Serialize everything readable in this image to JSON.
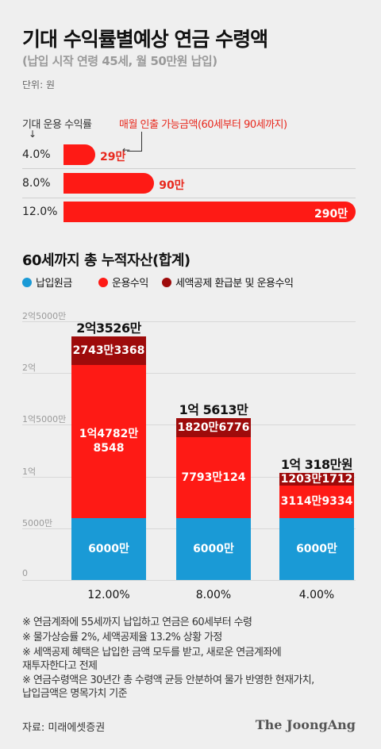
{
  "header": {
    "title": "기대 수익률별예상 연금 수령액",
    "subtitle": "(납입 시작 연령 45세, 월 50만원 납입)",
    "unit": "단위: 원"
  },
  "monthly": {
    "rate_label": "기대 운용 수익률",
    "note": "매월 인출 가능금액(60세부터 90세까지)",
    "rows": [
      {
        "rate": "4.0%",
        "value": 29,
        "label": "29만"
      },
      {
        "rate": "8.0%",
        "value": 90,
        "label": "90만"
      },
      {
        "rate": "12.0%",
        "value": 290,
        "label": "290만"
      }
    ]
  },
  "chart_data": {
    "type": "bar",
    "stacked": true,
    "title": "60세까지 총 누적자산(합계)",
    "categories": [
      "12.00%",
      "8.00%",
      "4.00%"
    ],
    "ylim": [
      0,
      250000000
    ],
    "yticks": [
      {
        "value": 0,
        "label": "0"
      },
      {
        "value": 50000000,
        "label": "5000만"
      },
      {
        "value": 100000000,
        "label": "1억"
      },
      {
        "value": 150000000,
        "label": "1억5000만"
      },
      {
        "value": 200000000,
        "label": "2억"
      },
      {
        "value": 250000000,
        "label": "2억5000만"
      }
    ],
    "series": [
      {
        "name": "납입원금",
        "color": "#1a9ad6",
        "values": [
          60000000,
          60000000,
          60000000
        ],
        "labels": [
          "6000만",
          "6000만",
          "6000만"
        ]
      },
      {
        "name": "운용수익",
        "color": "#fe1a15",
        "values": [
          147828548,
          77930124,
          31149334
        ],
        "labels": [
          "1억4782만\n8548",
          "7793만124",
          "3114만9334"
        ]
      },
      {
        "name": "세액공제 환급분 및 운용수익",
        "color": "#9e0b0b",
        "values": [
          27433368,
          18206776,
          12031712
        ],
        "labels": [
          "2743만3368",
          "1820만6776",
          "1203만1712"
        ]
      }
    ],
    "totals": [
      "2억3526만",
      "1억 5613만",
      "1억 318만원"
    ]
  },
  "footnotes": [
    "※ 연금계좌에 55세까지 납입하고 연금은 60세부터 수령",
    "※ 물가상승률 2%, 세액공제율 13.2% 상황 가정",
    "※ 세액공제 혜택은 납입한 금액 모두를 받고, 새로운 연금계좌에\n    재투자한다고 전제",
    "※ 연금수령액은 30년간 총 수령액 균등 안분하여 물가 반영한 현재가치,\n    납입금액은 명목가치 기준"
  ],
  "source": "자료: 미래에셋증권",
  "logo": "The JoongAng"
}
